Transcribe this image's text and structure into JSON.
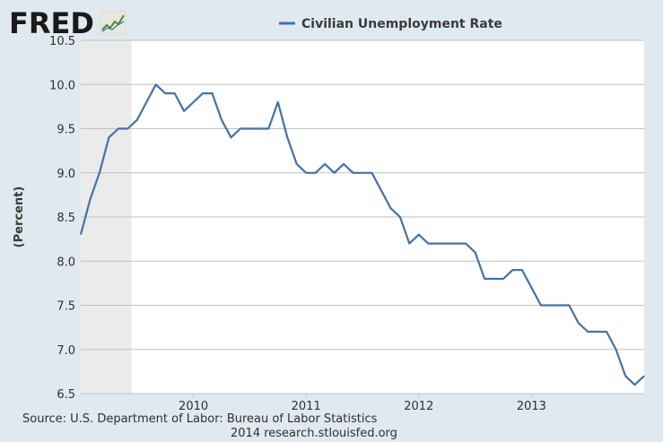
{
  "brand": {
    "logo_text": "FRED",
    "logo_color": "#1a1a1a"
  },
  "chart_data": {
    "type": "line",
    "legend": {
      "label": "Civilian Unemployment Rate",
      "placement": "top-center"
    },
    "ylabel": "(Percent)",
    "ylim": [
      6.5,
      10.5
    ],
    "yticks": [
      "10.5",
      "10.0",
      "9.5",
      "9.0",
      "8.5",
      "8.0",
      "7.5",
      "7.0",
      "6.5"
    ],
    "xlim": [
      "2009-01",
      "2014-01"
    ],
    "xticks": [
      "2010",
      "2011",
      "2012",
      "2013"
    ],
    "recession_shading": {
      "start": "2009-01",
      "end": "2009-06",
      "color": "#ebebeb"
    },
    "grid": true,
    "line_color": "#4572a7",
    "series": [
      {
        "name": "Civilian Unemployment Rate",
        "x": [
          "2009-01",
          "2009-02",
          "2009-03",
          "2009-04",
          "2009-05",
          "2009-06",
          "2009-07",
          "2009-08",
          "2009-09",
          "2009-10",
          "2009-11",
          "2009-12",
          "2010-01",
          "2010-02",
          "2010-03",
          "2010-04",
          "2010-05",
          "2010-06",
          "2010-07",
          "2010-08",
          "2010-09",
          "2010-10",
          "2010-11",
          "2010-12",
          "2011-01",
          "2011-02",
          "2011-03",
          "2011-04",
          "2011-05",
          "2011-06",
          "2011-07",
          "2011-08",
          "2011-09",
          "2011-10",
          "2011-11",
          "2011-12",
          "2012-01",
          "2012-02",
          "2012-03",
          "2012-04",
          "2012-05",
          "2012-06",
          "2012-07",
          "2012-08",
          "2012-09",
          "2012-10",
          "2012-11",
          "2012-12",
          "2013-01",
          "2013-02",
          "2013-03",
          "2013-04",
          "2013-05",
          "2013-06",
          "2013-07",
          "2013-08",
          "2013-09",
          "2013-10",
          "2013-11",
          "2013-12",
          "2014-01"
        ],
        "values": [
          8.3,
          8.7,
          9.0,
          9.4,
          9.5,
          9.5,
          9.6,
          9.8,
          10.0,
          9.9,
          9.9,
          9.7,
          9.8,
          9.9,
          9.9,
          9.6,
          9.4,
          9.5,
          9.5,
          9.5,
          9.5,
          9.8,
          9.4,
          9.1,
          9.0,
          9.0,
          9.1,
          9.0,
          9.1,
          9.0,
          9.0,
          9.0,
          8.8,
          8.6,
          8.5,
          8.2,
          8.3,
          8.2,
          8.2,
          8.2,
          8.2,
          8.2,
          8.1,
          7.8,
          7.8,
          7.8,
          7.9,
          7.9,
          7.7,
          7.5,
          7.5,
          7.5,
          7.5,
          7.3,
          7.2,
          7.2,
          7.2,
          7.0,
          6.7,
          6.6,
          6.7
        ]
      }
    ]
  },
  "source": {
    "line1": "Source: U.S. Department of Labor: Bureau of Labor Statistics",
    "line2": "2014 research.stlouisfed.org"
  }
}
